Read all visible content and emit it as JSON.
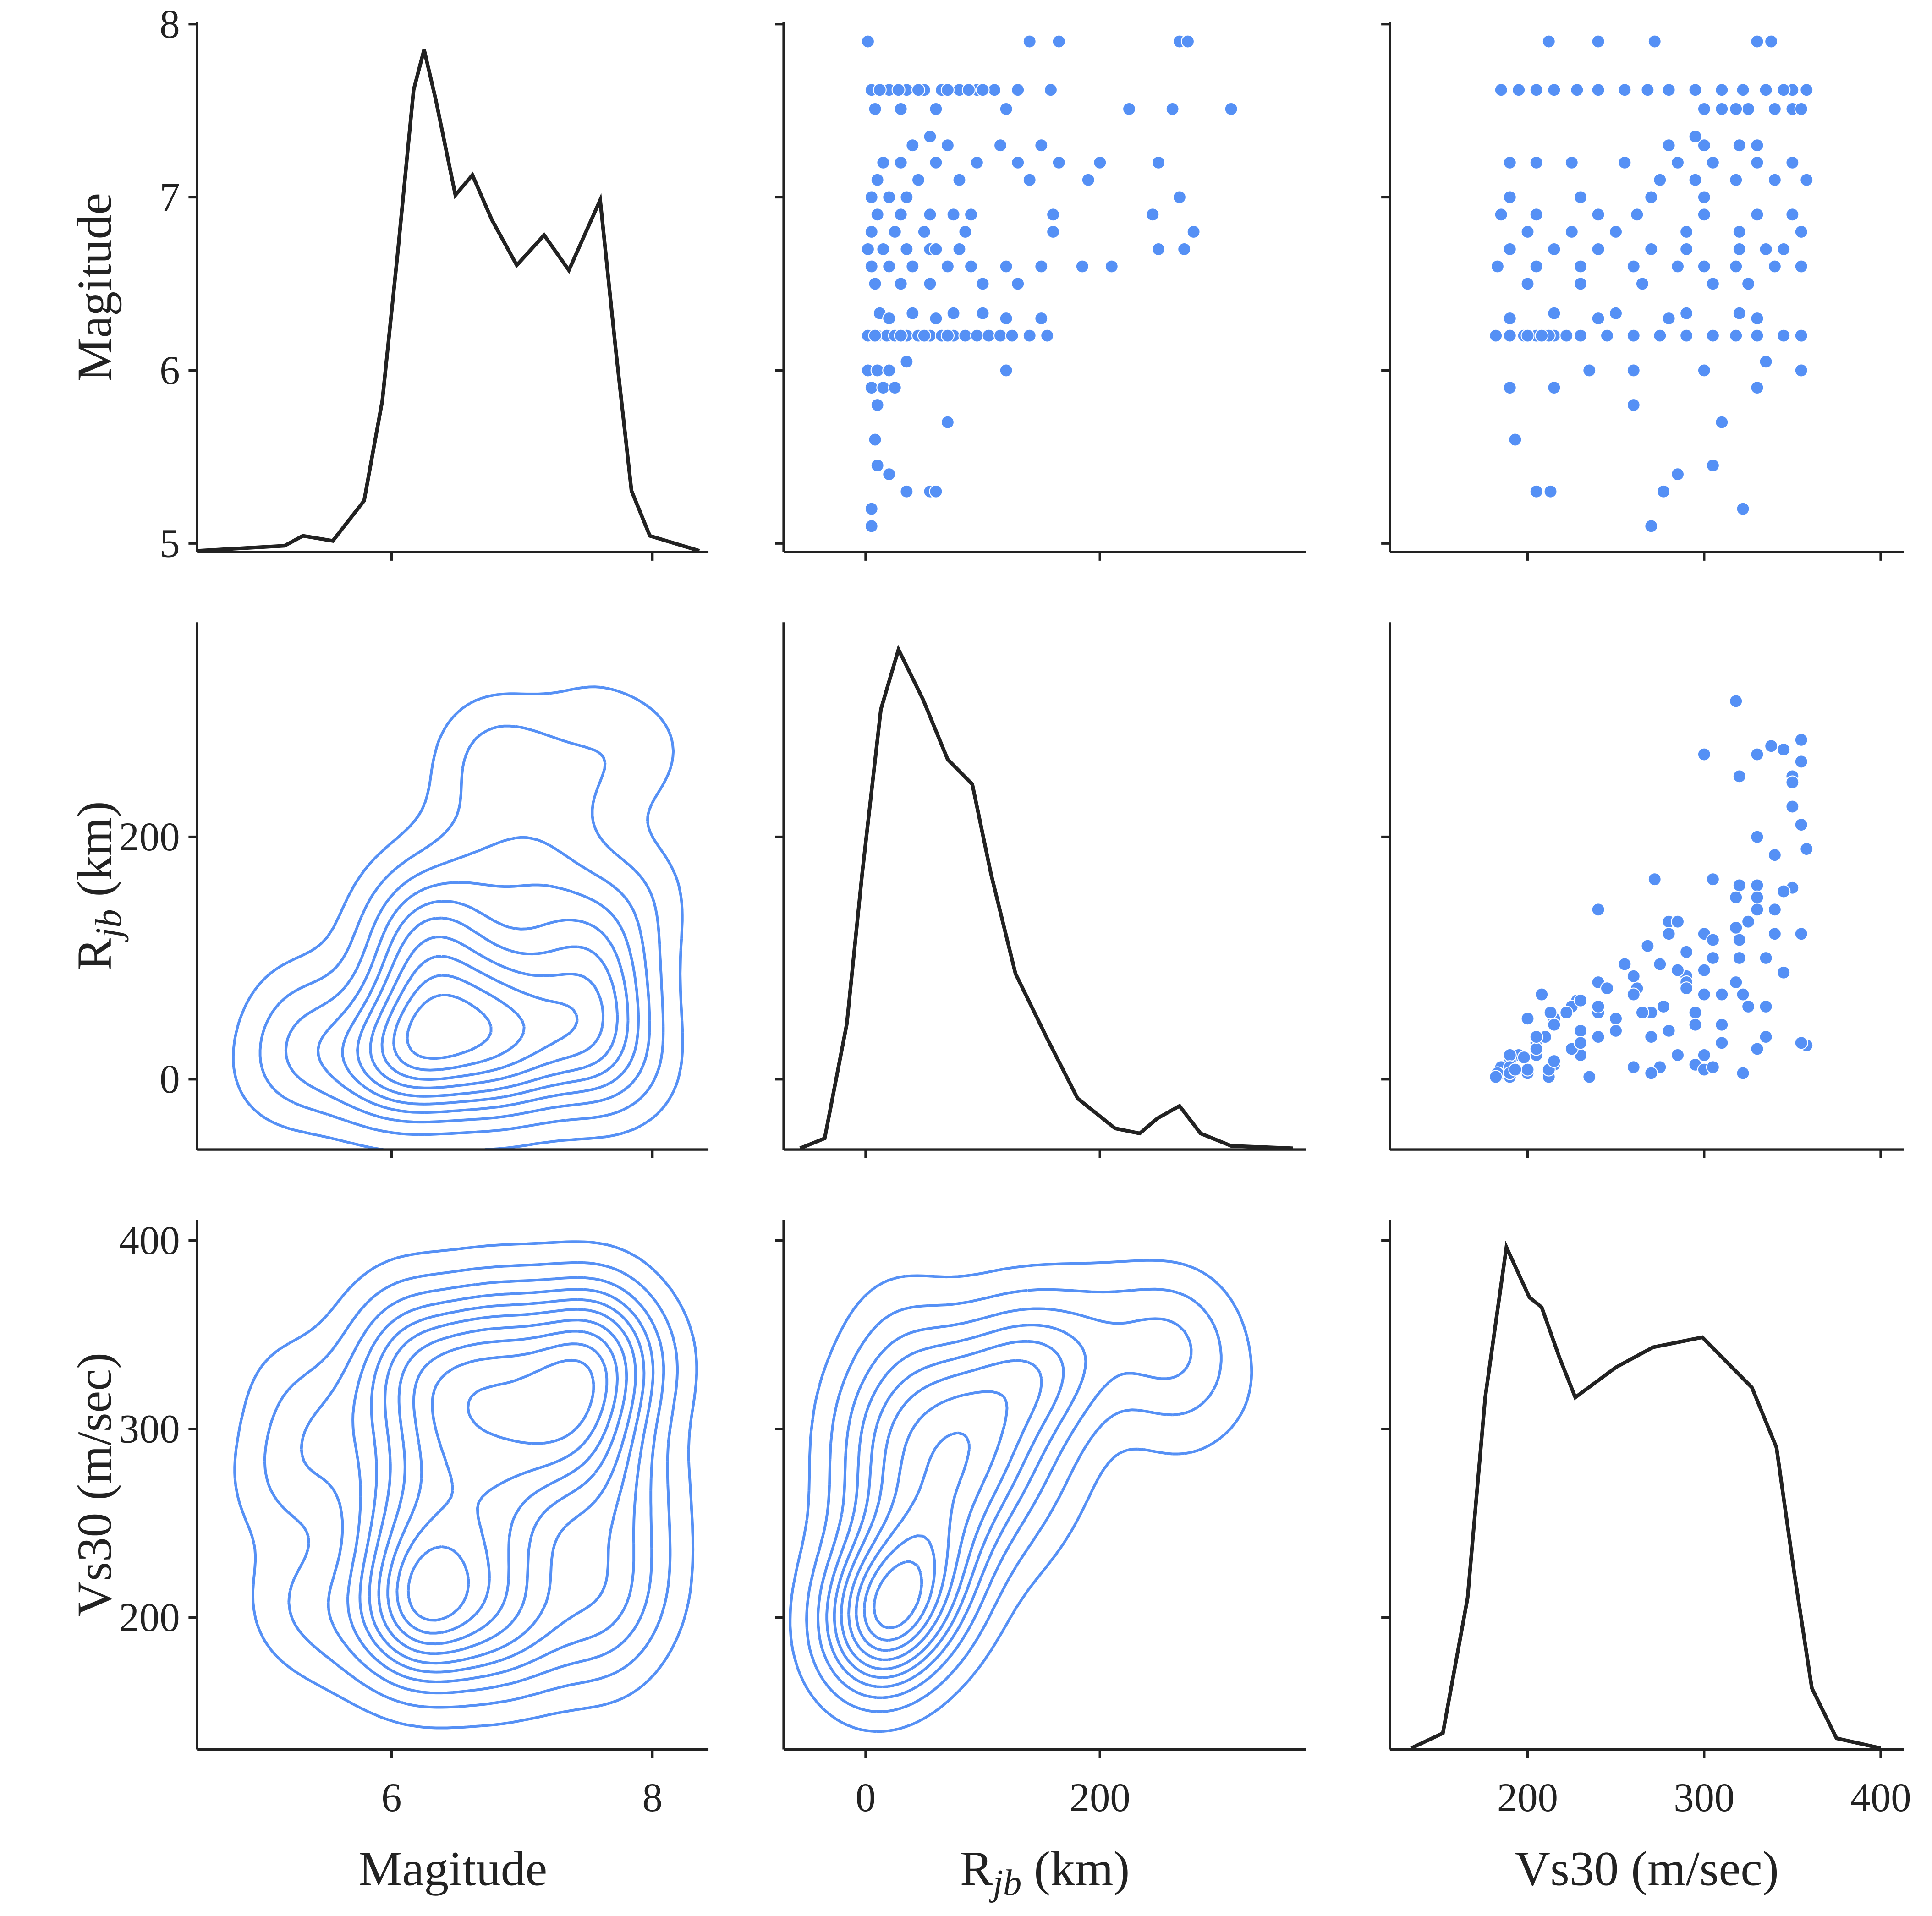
{
  "chart_data": {
    "type": "pairplot",
    "colors": {
      "points": "#5590f5",
      "diag_line": "#222222",
      "contour": "#5590f5"
    },
    "variables": [
      {
        "key": "mag",
        "label": {
          "main": "Magitude",
          "sub": "",
          "unit": ""
        },
        "xlim": [
          4.51,
          8.43
        ],
        "ylim": [
          4.95,
          8.01
        ],
        "xticks": [
          6,
          8
        ],
        "yticks": [
          5,
          6,
          7,
          8
        ]
      },
      {
        "key": "rjb",
        "label": {
          "main": "R",
          "sub": "jb",
          "unit": " (km)"
        },
        "xlim": [
          -70,
          376
        ],
        "ylim": [
          -58,
          377
        ],
        "xticks": [
          0,
          200
        ],
        "yticks": [
          0,
          200
        ]
      },
      {
        "key": "vs30",
        "label": {
          "main": "Vs30 (m/sec)",
          "sub": "",
          "unit": ""
        },
        "xlim": [
          122,
          413
        ],
        "ylim": [
          130,
          411
        ],
        "xticks": [
          200,
          300,
          400
        ],
        "yticks": [
          200,
          300,
          400
        ]
      }
    ],
    "layout": {
      "upper": "scatter",
      "diag": "kde",
      "lower": "kde-contour",
      "grid": false
    },
    "diag_kde_relative_density": {
      "mag": [
        [
          4.51,
          0
        ],
        [
          5.18,
          0.01
        ],
        [
          5.32,
          0.03
        ],
        [
          5.55,
          0.02
        ],
        [
          5.79,
          0.1
        ],
        [
          5.93,
          0.3
        ],
        [
          6.05,
          0.6
        ],
        [
          6.17,
          0.92
        ],
        [
          6.25,
          1.0
        ],
        [
          6.34,
          0.9
        ],
        [
          6.49,
          0.71
        ],
        [
          6.62,
          0.75
        ],
        [
          6.77,
          0.66
        ],
        [
          6.96,
          0.57
        ],
        [
          7.17,
          0.63
        ],
        [
          7.36,
          0.56
        ],
        [
          7.6,
          0.7
        ],
        [
          7.72,
          0.4
        ],
        [
          7.84,
          0.12
        ],
        [
          7.98,
          0.03
        ],
        [
          8.36,
          0
        ]
      ],
      "rjb": [
        [
          -56,
          0
        ],
        [
          -35,
          0.02
        ],
        [
          -16,
          0.25
        ],
        [
          -3,
          0.55
        ],
        [
          13,
          0.88
        ],
        [
          28,
          1.0
        ],
        [
          49,
          0.9
        ],
        [
          70,
          0.78
        ],
        [
          91,
          0.73
        ],
        [
          107,
          0.55
        ],
        [
          128,
          0.35
        ],
        [
          155,
          0.22
        ],
        [
          181,
          0.1
        ],
        [
          213,
          0.04
        ],
        [
          234,
          0.03
        ],
        [
          249,
          0.06
        ],
        [
          268,
          0.085
        ],
        [
          286,
          0.03
        ],
        [
          312,
          0.005
        ],
        [
          365,
          0
        ]
      ],
      "vs30": [
        [
          134,
          0
        ],
        [
          152,
          0.03
        ],
        [
          166,
          0.3
        ],
        [
          176,
          0.7
        ],
        [
          188,
          1.0
        ],
        [
          201,
          0.9
        ],
        [
          208,
          0.88
        ],
        [
          218,
          0.78
        ],
        [
          227,
          0.7
        ],
        [
          250,
          0.76
        ],
        [
          271,
          0.8
        ],
        [
          299,
          0.82
        ],
        [
          327,
          0.72
        ],
        [
          341,
          0.6
        ],
        [
          351,
          0.35
        ],
        [
          361,
          0.12
        ],
        [
          375,
          0.02
        ],
        [
          400,
          0
        ]
      ]
    },
    "records_columns": [
      "mag",
      "rjb",
      "vs30"
    ],
    "records": [
      [
        7.9,
        2,
        212
      ],
      [
        7.9,
        140,
        240
      ],
      [
        7.9,
        165,
        272
      ],
      [
        7.9,
        268,
        330
      ],
      [
        7.9,
        275,
        338
      ],
      [
        7.62,
        5,
        185
      ],
      [
        7.62,
        20,
        195
      ],
      [
        7.62,
        35,
        205
      ],
      [
        7.62,
        50,
        215
      ],
      [
        7.62,
        65,
        228
      ],
      [
        7.62,
        80,
        240
      ],
      [
        7.62,
        95,
        255
      ],
      [
        7.62,
        110,
        268
      ],
      [
        7.62,
        130,
        280
      ],
      [
        7.62,
        12,
        295
      ],
      [
        7.62,
        45,
        310
      ],
      [
        7.62,
        70,
        322
      ],
      [
        7.62,
        100,
        335
      ],
      [
        7.62,
        158,
        350
      ],
      [
        7.62,
        28,
        358
      ],
      [
        7.62,
        88,
        345
      ],
      [
        7.51,
        8,
        300
      ],
      [
        7.51,
        30,
        310
      ],
      [
        7.51,
        60,
        325
      ],
      [
        7.51,
        120,
        340
      ],
      [
        7.51,
        225,
        350
      ],
      [
        7.51,
        262,
        355
      ],
      [
        7.51,
        312,
        318
      ],
      [
        7.3,
        40,
        280
      ],
      [
        7.3,
        70,
        300
      ],
      [
        7.3,
        115,
        320
      ],
      [
        7.3,
        150,
        330
      ],
      [
        7.35,
        55,
        295
      ],
      [
        7.2,
        15,
        190
      ],
      [
        7.2,
        30,
        205
      ],
      [
        7.2,
        60,
        225
      ],
      [
        7.2,
        95,
        255
      ],
      [
        7.2,
        130,
        285
      ],
      [
        7.2,
        165,
        305
      ],
      [
        7.2,
        200,
        330
      ],
      [
        7.2,
        250,
        350
      ],
      [
        7.1,
        10,
        275
      ],
      [
        7.1,
        45,
        295
      ],
      [
        7.1,
        80,
        318
      ],
      [
        7.1,
        140,
        340
      ],
      [
        7.1,
        190,
        358
      ],
      [
        7.0,
        5,
        190
      ],
      [
        7.0,
        20,
        230
      ],
      [
        7.0,
        35,
        270
      ],
      [
        7.0,
        268,
        300
      ],
      [
        6.9,
        10,
        185
      ],
      [
        6.9,
        30,
        205
      ],
      [
        6.9,
        55,
        240
      ],
      [
        6.9,
        75,
        262
      ],
      [
        6.9,
        90,
        300
      ],
      [
        6.9,
        160,
        330
      ],
      [
        6.9,
        245,
        350
      ],
      [
        6.8,
        5,
        200
      ],
      [
        6.8,
        25,
        225
      ],
      [
        6.8,
        50,
        250
      ],
      [
        6.8,
        85,
        290
      ],
      [
        6.8,
        160,
        320
      ],
      [
        6.8,
        280,
        355
      ],
      [
        6.7,
        2,
        190
      ],
      [
        6.7,
        15,
        215
      ],
      [
        6.7,
        35,
        240
      ],
      [
        6.7,
        55,
        270
      ],
      [
        6.7,
        80,
        290
      ],
      [
        6.7,
        250,
        320
      ],
      [
        6.7,
        272,
        345
      ],
      [
        6.7,
        60,
        335
      ],
      [
        6.6,
        5,
        183
      ],
      [
        6.6,
        20,
        205
      ],
      [
        6.6,
        40,
        230
      ],
      [
        6.6,
        70,
        260
      ],
      [
        6.6,
        90,
        285
      ],
      [
        6.6,
        120,
        300
      ],
      [
        6.6,
        150,
        318
      ],
      [
        6.6,
        185,
        340
      ],
      [
        6.6,
        210,
        355
      ],
      [
        6.5,
        8,
        200
      ],
      [
        6.5,
        30,
        230
      ],
      [
        6.5,
        55,
        265
      ],
      [
        6.5,
        100,
        305
      ],
      [
        6.5,
        130,
        325
      ],
      [
        6.33,
        12,
        215
      ],
      [
        6.33,
        40,
        250
      ],
      [
        6.33,
        75,
        290
      ],
      [
        6.33,
        100,
        320
      ],
      [
        6.3,
        20,
        190
      ],
      [
        6.3,
        60,
        240
      ],
      [
        6.3,
        120,
        280
      ],
      [
        6.3,
        150,
        330
      ],
      [
        6.2,
        2,
        182
      ],
      [
        6.2,
        10,
        190
      ],
      [
        6.2,
        18,
        198
      ],
      [
        6.2,
        25,
        205
      ],
      [
        6.2,
        35,
        210
      ],
      [
        6.2,
        45,
        215
      ],
      [
        6.2,
        55,
        222
      ],
      [
        6.2,
        65,
        230
      ],
      [
        6.2,
        75,
        245
      ],
      [
        6.2,
        85,
        260
      ],
      [
        6.2,
        95,
        275
      ],
      [
        6.2,
        105,
        290
      ],
      [
        6.2,
        115,
        305
      ],
      [
        6.2,
        125,
        318
      ],
      [
        6.2,
        140,
        330
      ],
      [
        6.2,
        155,
        345
      ],
      [
        6.2,
        30,
        355
      ],
      [
        6.2,
        50,
        200
      ],
      [
        6.2,
        8,
        212
      ],
      [
        6.2,
        70,
        208
      ],
      [
        6.05,
        35,
        335
      ],
      [
        6.0,
        2,
        235
      ],
      [
        6.0,
        10,
        260
      ],
      [
        6.0,
        20,
        300
      ],
      [
        6.0,
        120,
        355
      ],
      [
        5.9,
        5,
        190
      ],
      [
        5.9,
        15,
        215
      ],
      [
        5.9,
        25,
        330
      ],
      [
        5.8,
        10,
        260
      ],
      [
        5.7,
        70,
        310
      ],
      [
        5.6,
        8,
        193
      ],
      [
        5.45,
        10,
        305
      ],
      [
        5.4,
        20,
        285
      ],
      [
        5.3,
        35,
        205
      ],
      [
        5.3,
        55,
        213
      ],
      [
        5.3,
        60,
        277
      ],
      [
        5.2,
        5,
        322
      ],
      [
        5.1,
        5,
        270
      ]
    ]
  }
}
